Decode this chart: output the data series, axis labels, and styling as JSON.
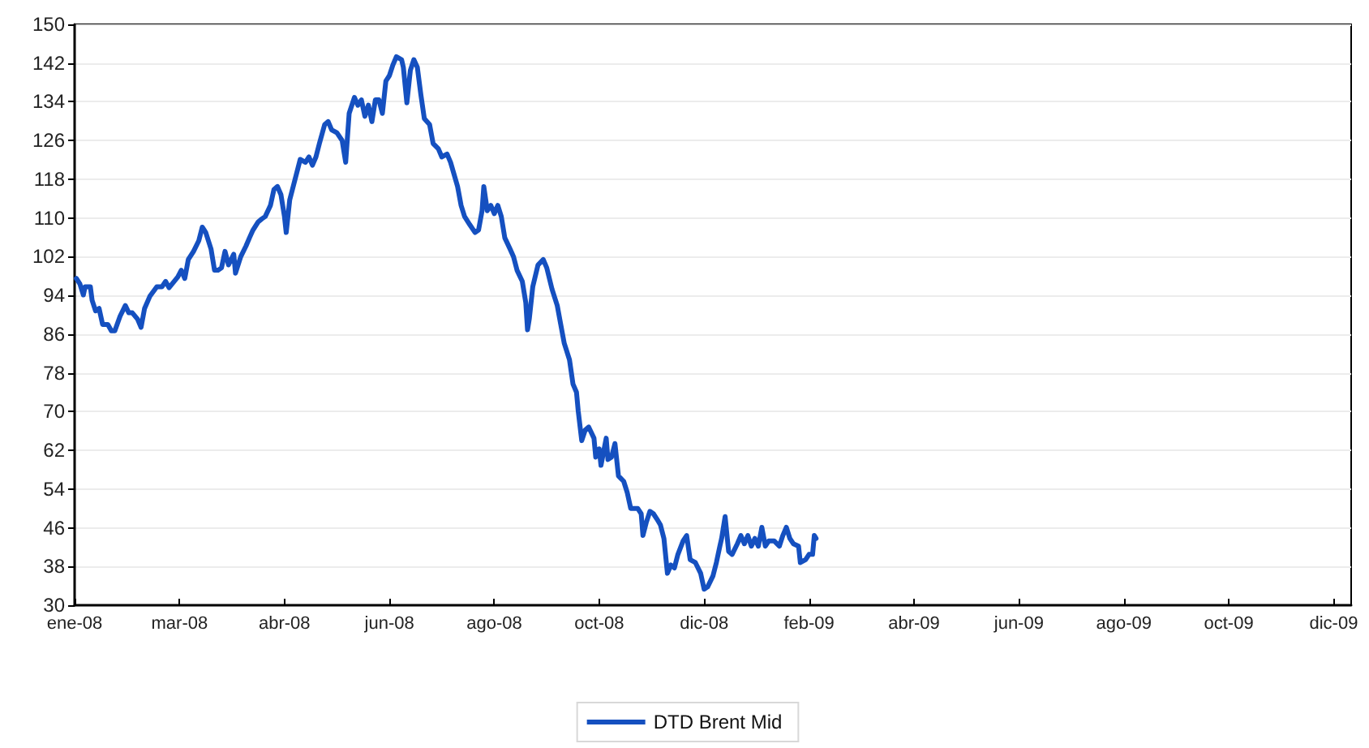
{
  "chart_data": {
    "type": "line",
    "x": [
      "2008-01-02",
      "2008-01-04",
      "2008-01-06",
      "2008-01-07",
      "2008-01-10",
      "2008-01-11",
      "2008-01-13",
      "2008-01-15",
      "2008-01-17",
      "2008-01-20",
      "2008-01-22",
      "2008-01-24",
      "2008-01-27",
      "2008-01-30",
      "2008-02-01",
      "2008-02-03",
      "2008-02-06",
      "2008-02-08",
      "2008-02-10",
      "2008-02-13",
      "2008-02-17",
      "2008-02-20",
      "2008-02-22",
      "2008-02-24",
      "2008-02-29",
      "2008-03-02",
      "2008-03-04",
      "2008-03-06",
      "2008-03-09",
      "2008-03-12",
      "2008-03-14",
      "2008-03-16",
      "2008-03-19",
      "2008-03-21",
      "2008-03-23",
      "2008-03-25",
      "2008-03-27",
      "2008-03-29",
      "2008-04-01",
      "2008-04-02",
      "2008-04-05",
      "2008-04-08",
      "2008-04-10",
      "2008-04-12",
      "2008-04-15",
      "2008-04-17",
      "2008-04-19",
      "2008-04-22",
      "2008-04-24",
      "2008-04-26",
      "2008-04-28",
      "2008-04-30",
      "2008-05-01",
      "2008-05-03",
      "2008-05-07",
      "2008-05-09",
      "2008-05-12",
      "2008-05-14",
      "2008-05-16",
      "2008-05-18",
      "2008-05-20",
      "2008-05-23",
      "2008-05-25",
      "2008-05-27",
      "2008-05-30",
      "2008-06-02",
      "2008-06-04",
      "2008-06-06",
      "2008-06-09",
      "2008-06-11",
      "2008-06-13",
      "2008-06-15",
      "2008-06-17",
      "2008-06-19",
      "2008-06-21",
      "2008-06-23",
      "2008-06-25",
      "2008-06-27",
      "2008-06-29",
      "2008-07-01",
      "2008-07-03",
      "2008-07-06",
      "2008-07-07",
      "2008-07-09",
      "2008-07-11",
      "2008-07-13",
      "2008-07-15",
      "2008-07-17",
      "2008-07-19",
      "2008-07-22",
      "2008-07-24",
      "2008-07-27",
      "2008-07-29",
      "2008-08-01",
      "2008-08-03",
      "2008-08-07",
      "2008-08-09",
      "2008-08-11",
      "2008-08-14",
      "2008-08-17",
      "2008-08-19",
      "2008-08-21",
      "2008-08-22",
      "2008-08-24",
      "2008-08-26",
      "2008-08-28",
      "2008-08-30",
      "2008-09-01",
      "2008-09-03",
      "2008-09-06",
      "2008-09-08",
      "2008-09-10",
      "2008-09-13",
      "2008-09-15",
      "2008-09-16",
      "2008-09-17",
      "2008-09-19",
      "2008-09-22",
      "2008-09-25",
      "2008-09-27",
      "2008-09-30",
      "2008-10-03",
      "2008-10-05",
      "2008-10-07",
      "2008-10-10",
      "2008-10-12",
      "2008-10-14",
      "2008-10-15",
      "2008-10-17",
      "2008-10-19",
      "2008-10-21",
      "2008-10-24",
      "2008-10-25",
      "2008-10-27",
      "2008-10-28",
      "2008-10-31",
      "2008-11-01",
      "2008-11-03",
      "2008-11-05",
      "2008-11-07",
      "2008-11-10",
      "2008-11-12",
      "2008-11-14",
      "2008-11-18",
      "2008-11-20",
      "2008-11-21",
      "2008-11-23",
      "2008-11-25",
      "2008-11-27",
      "2008-11-29",
      "2008-12-01",
      "2008-12-03",
      "2008-12-05",
      "2008-12-07",
      "2008-12-09",
      "2008-12-11",
      "2008-12-14",
      "2008-12-16",
      "2008-12-18",
      "2008-12-21",
      "2008-12-24",
      "2008-12-26",
      "2008-12-28",
      "2008-12-31",
      "2009-01-02",
      "2009-01-04",
      "2009-01-05",
      "2009-01-07",
      "2009-01-09",
      "2009-01-11",
      "2009-01-14",
      "2009-01-16",
      "2009-01-18",
      "2009-01-20",
      "2009-01-22",
      "2009-01-24",
      "2009-01-26",
      "2009-01-28",
      "2009-01-30",
      "2009-02-01",
      "2009-02-04",
      "2009-02-07",
      "2009-02-09",
      "2009-02-11",
      "2009-02-13",
      "2009-02-15",
      "2009-02-18",
      "2009-02-19",
      "2009-02-22",
      "2009-02-24",
      "2009-02-26",
      "2009-02-27",
      "2009-02-28"
    ],
    "series": [
      {
        "name": "DTD Brent Mid",
        "color": "#1550c0",
        "values": [
          97.5,
          96.4,
          94.1,
          95.8,
          95.8,
          93.0,
          90.8,
          91.3,
          88.0,
          88.0,
          86.7,
          86.7,
          89.7,
          91.9,
          90.4,
          90.4,
          89.1,
          87.4,
          91.3,
          93.8,
          95.8,
          95.8,
          96.9,
          95.6,
          97.8,
          99.2,
          97.5,
          101.4,
          103.1,
          105.3,
          108.1,
          107.0,
          103.6,
          99.2,
          99.2,
          99.7,
          103.1,
          100.3,
          102.5,
          98.6,
          102.0,
          104.2,
          105.9,
          107.5,
          109.2,
          109.8,
          110.3,
          112.6,
          115.9,
          116.5,
          114.8,
          110.3,
          107.0,
          113.7,
          119.3,
          122.1,
          121.5,
          122.6,
          120.9,
          122.6,
          125.4,
          129.3,
          129.9,
          128.2,
          127.6,
          126.0,
          121.5,
          131.6,
          134.9,
          133.3,
          134.4,
          131.0,
          133.3,
          129.9,
          134.4,
          134.4,
          131.6,
          138.3,
          139.4,
          141.6,
          143.3,
          142.7,
          141.1,
          133.8,
          140.5,
          142.7,
          141.1,
          135.5,
          130.5,
          129.3,
          125.4,
          124.3,
          122.6,
          123.2,
          121.5,
          116.5,
          112.6,
          110.3,
          108.6,
          107.0,
          107.5,
          111.5,
          116.5,
          111.5,
          112.6,
          110.9,
          112.6,
          110.3,
          105.9,
          103.6,
          102.0,
          99.2,
          96.9,
          92.5,
          86.9,
          89.1,
          95.8,
          100.3,
          101.4,
          99.7,
          95.3,
          91.9,
          88.0,
          84.1,
          80.7,
          75.7,
          74.0,
          70.1,
          64.0,
          66.2,
          66.8,
          64.5,
          60.6,
          62.3,
          58.9,
          64.5,
          60.1,
          60.6,
          63.4,
          56.7,
          55.6,
          53.3,
          50.0,
          50.0,
          48.9,
          44.4,
          47.2,
          49.4,
          48.9,
          47.8,
          46.6,
          43.8,
          36.6,
          38.3,
          37.7,
          40.5,
          43.3,
          44.4,
          39.4,
          38.8,
          36.6,
          33.3,
          33.8,
          36.0,
          38.8,
          42.2,
          43.8,
          48.3,
          41.1,
          40.5,
          42.7,
          44.4,
          42.7,
          44.4,
          42.2,
          43.8,
          42.2,
          46.1,
          42.2,
          43.3,
          43.3,
          42.2,
          44.4,
          46.1,
          43.8,
          42.7,
          42.2,
          38.8,
          39.4,
          40.5,
          40.5,
          44.4,
          43.8
        ]
      }
    ],
    "xlim": [
      "2008-01-01",
      "2009-12-31"
    ],
    "xticks": [
      {
        "value": "2008-01-01",
        "label": "ene-08"
      },
      {
        "value": "2008-03-01",
        "label": "mar-08"
      },
      {
        "value": "2008-04-30",
        "label": "abr-08"
      },
      {
        "value": "2008-06-29",
        "label": "jun-08"
      },
      {
        "value": "2008-08-28",
        "label": "ago-08"
      },
      {
        "value": "2008-10-27",
        "label": "oct-08"
      },
      {
        "value": "2008-12-26",
        "label": "dic-08"
      },
      {
        "value": "2009-02-24",
        "label": "feb-09"
      },
      {
        "value": "2009-04-25",
        "label": "abr-09"
      },
      {
        "value": "2009-06-24",
        "label": "jun-09"
      },
      {
        "value": "2009-08-23",
        "label": "ago-09"
      },
      {
        "value": "2009-10-22",
        "label": "oct-09"
      },
      {
        "value": "2009-12-21",
        "label": "dic-09"
      }
    ],
    "ylim": [
      30,
      150
    ],
    "yticks": [
      30,
      38,
      46,
      54,
      62,
      70,
      78,
      86,
      94,
      102,
      110,
      118,
      126,
      134,
      142,
      150
    ],
    "grid": "y",
    "legend": "bottom",
    "line_style": "solid"
  }
}
